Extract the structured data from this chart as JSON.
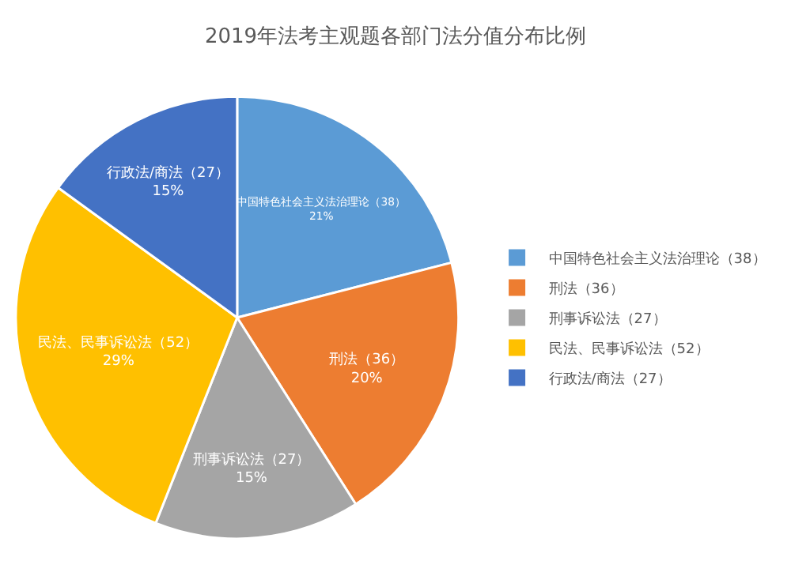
{
  "chart_data": {
    "type": "pie",
    "title": "2019年法考主观题各部门法分值分布比例",
    "categories": [
      "中国特色社会主义法治理论（38）",
      "刑法（36）",
      "刑事诉讼法（27）",
      "民法、民事诉讼法（52）",
      "行政法/商法（27）"
    ],
    "values": [
      21,
      20,
      15,
      29,
      15
    ],
    "value_labels": [
      "21%",
      "20%",
      "15%",
      "29%",
      "15%"
    ],
    "colors": [
      "#5b9bd5",
      "#ed7d31",
      "#a5a5a5",
      "#ffc000",
      "#4472c4"
    ],
    "legend": "right"
  }
}
